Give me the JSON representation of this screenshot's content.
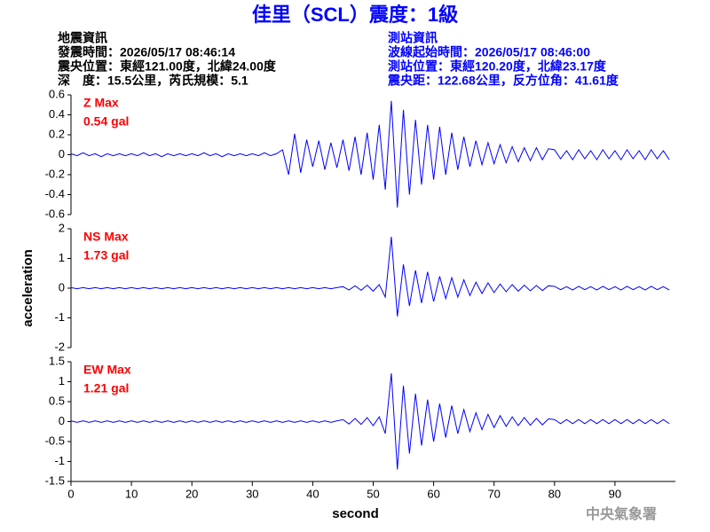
{
  "title": "佳里（SCL）震度：1級",
  "info_left": [
    "地震資訊",
    "發震時間：2026/05/17 08:46:14",
    "震央位置：東經121.00度，北緯24.00度",
    "深　度：15.5公里，芮氏規模：5.1"
  ],
  "info_right": [
    "測站資訊",
    "波線起始時間：2026/05/17 08:46:00",
    "測站位置：東經120.20度，北緯23.17度",
    "震央距：122.68公里，反方位角：41.61度"
  ],
  "footer": "中央氣象署",
  "chart_data": [
    {
      "type": "line",
      "name": "Z Max",
      "max_label": "0.54 gal",
      "xlim": [
        0,
        100
      ],
      "ylim": [
        -0.6,
        0.6
      ],
      "yticks": [
        0.6,
        0.4,
        0.2,
        0,
        -0.2,
        -0.4,
        -0.6
      ],
      "x": [
        0,
        1,
        2,
        3,
        4,
        5,
        6,
        7,
        8,
        9,
        10,
        11,
        12,
        13,
        14,
        15,
        16,
        17,
        18,
        19,
        20,
        21,
        22,
        23,
        24,
        25,
        26,
        27,
        28,
        29,
        30,
        31,
        32,
        33,
        34,
        35,
        36,
        37,
        38,
        39,
        40,
        41,
        42,
        43,
        44,
        45,
        46,
        47,
        48,
        49,
        50,
        51,
        52,
        53,
        54,
        55,
        56,
        57,
        58,
        59,
        60,
        61,
        62,
        63,
        64,
        65,
        66,
        67,
        68,
        69,
        70,
        71,
        72,
        73,
        74,
        75,
        76,
        77,
        78,
        79,
        80,
        81,
        82,
        83,
        84,
        85,
        86,
        87,
        88,
        89,
        90,
        91,
        92,
        93,
        94,
        95,
        96,
        97,
        98,
        99
      ],
      "series": [
        {
          "color": "#0000ff",
          "values": [
            0.01,
            -0.01,
            0.02,
            -0.01,
            0.01,
            -0.02,
            0.01,
            -0.01,
            0.01,
            -0.01,
            0.01,
            -0.01,
            0.02,
            -0.01,
            0.01,
            -0.02,
            0.01,
            -0.01,
            0.01,
            -0.01,
            0.01,
            -0.01,
            0.02,
            -0.01,
            0.01,
            -0.02,
            0.01,
            -0.01,
            0.01,
            -0.01,
            0.01,
            -0.01,
            0.02,
            -0.01,
            0.01,
            0.05,
            -0.2,
            0.21,
            -0.18,
            0.15,
            -0.12,
            0.14,
            -0.15,
            0.12,
            -0.13,
            0.15,
            -0.16,
            0.18,
            -0.2,
            0.22,
            -0.25,
            0.3,
            -0.35,
            0.54,
            -0.53,
            0.45,
            -0.4,
            0.35,
            -0.3,
            0.3,
            -0.25,
            0.28,
            -0.2,
            0.22,
            -0.15,
            0.18,
            -0.12,
            0.14,
            -0.1,
            0.12,
            -0.09,
            0.1,
            -0.08,
            0.08,
            -0.07,
            0.07,
            -0.06,
            0.07,
            -0.05,
            0.06,
            0.05,
            -0.04,
            0.04,
            -0.05,
            0.05,
            -0.04,
            0.04,
            -0.05,
            0.05,
            -0.04,
            0.04,
            -0.05,
            0.05,
            -0.04,
            0.04,
            -0.05,
            0.05,
            -0.04,
            0.04,
            -0.05
          ]
        }
      ]
    },
    {
      "type": "line",
      "name": "NS Max",
      "max_label": "1.73 gal",
      "y_label": "acceleration",
      "xlim": [
        0,
        100
      ],
      "ylim": [
        -2,
        2
      ],
      "yticks": [
        2,
        1,
        0,
        -1,
        -2
      ],
      "x": [
        0,
        1,
        2,
        3,
        4,
        5,
        6,
        7,
        8,
        9,
        10,
        11,
        12,
        13,
        14,
        15,
        16,
        17,
        18,
        19,
        20,
        21,
        22,
        23,
        24,
        25,
        26,
        27,
        28,
        29,
        30,
        31,
        32,
        33,
        34,
        35,
        36,
        37,
        38,
        39,
        40,
        41,
        42,
        43,
        44,
        45,
        46,
        47,
        48,
        49,
        50,
        51,
        52,
        53,
        54,
        55,
        56,
        57,
        58,
        59,
        60,
        61,
        62,
        63,
        64,
        65,
        66,
        67,
        68,
        69,
        70,
        71,
        72,
        73,
        74,
        75,
        76,
        77,
        78,
        79,
        80,
        81,
        82,
        83,
        84,
        85,
        86,
        87,
        88,
        89,
        90,
        91,
        92,
        93,
        94,
        95,
        96,
        97,
        98,
        99
      ],
      "series": [
        {
          "color": "#0000ff",
          "values": [
            0.02,
            -0.02,
            0.02,
            -0.02,
            0.02,
            -0.02,
            0.02,
            -0.02,
            0.02,
            -0.02,
            0.02,
            -0.02,
            0.02,
            -0.02,
            0.02,
            -0.02,
            0.02,
            -0.02,
            0.02,
            -0.02,
            0.02,
            -0.02,
            0.02,
            -0.02,
            0.02,
            -0.02,
            0.02,
            -0.02,
            0.02,
            -0.02,
            0.02,
            -0.02,
            0.02,
            -0.02,
            0.02,
            -0.02,
            0.02,
            -0.02,
            0.02,
            -0.02,
            0.02,
            -0.02,
            0.02,
            -0.02,
            0.02,
            0.05,
            -0.06,
            0.08,
            -0.07,
            0.1,
            -0.1,
            0.12,
            -0.3,
            1.73,
            -0.95,
            0.8,
            -0.6,
            0.6,
            -0.5,
            0.55,
            -0.45,
            0.4,
            -0.35,
            0.35,
            -0.3,
            0.28,
            -0.25,
            0.2,
            -0.18,
            0.18,
            -0.15,
            0.14,
            -0.12,
            0.12,
            -0.1,
            0.1,
            -0.09,
            0.09,
            -0.08,
            0.08,
            0.06,
            -0.05,
            0.05,
            -0.06,
            0.06,
            -0.05,
            0.05,
            -0.06,
            0.06,
            -0.05,
            0.05,
            -0.06,
            0.06,
            -0.05,
            0.05,
            -0.06,
            0.06,
            -0.05,
            0.05,
            -0.06
          ]
        }
      ]
    },
    {
      "type": "line",
      "name": "EW Max",
      "max_label": "1.21 gal",
      "x_label": "second",
      "xlim": [
        0,
        100
      ],
      "xticks": [
        0,
        10,
        20,
        30,
        40,
        50,
        60,
        70,
        80,
        90
      ],
      "ylim": [
        -1.5,
        1.5
      ],
      "yticks": [
        1.5,
        1,
        0.5,
        0,
        -0.5,
        -1,
        -1.5
      ],
      "x": [
        0,
        1,
        2,
        3,
        4,
        5,
        6,
        7,
        8,
        9,
        10,
        11,
        12,
        13,
        14,
        15,
        16,
        17,
        18,
        19,
        20,
        21,
        22,
        23,
        24,
        25,
        26,
        27,
        28,
        29,
        30,
        31,
        32,
        33,
        34,
        35,
        36,
        37,
        38,
        39,
        40,
        41,
        42,
        43,
        44,
        45,
        46,
        47,
        48,
        49,
        50,
        51,
        52,
        53,
        54,
        55,
        56,
        57,
        58,
        59,
        60,
        61,
        62,
        63,
        64,
        65,
        66,
        67,
        68,
        69,
        70,
        71,
        72,
        73,
        74,
        75,
        76,
        77,
        78,
        79,
        80,
        81,
        82,
        83,
        84,
        85,
        86,
        87,
        88,
        89,
        90,
        91,
        92,
        93,
        94,
        95,
        96,
        97,
        98,
        99
      ],
      "series": [
        {
          "color": "#0000ff",
          "values": [
            0.02,
            -0.02,
            0.02,
            -0.02,
            0.02,
            -0.02,
            0.02,
            -0.02,
            0.02,
            -0.02,
            0.02,
            -0.02,
            0.02,
            -0.02,
            0.02,
            -0.02,
            0.02,
            -0.02,
            0.02,
            -0.02,
            0.02,
            -0.02,
            0.02,
            -0.02,
            0.02,
            -0.02,
            0.02,
            -0.02,
            0.02,
            -0.02,
            0.02,
            -0.02,
            0.02,
            -0.02,
            0.02,
            -0.02,
            0.02,
            -0.02,
            0.02,
            -0.02,
            0.02,
            -0.02,
            0.02,
            -0.02,
            0.02,
            0.05,
            -0.06,
            0.08,
            -0.07,
            0.1,
            -0.1,
            0.12,
            -0.3,
            1.21,
            -1.2,
            0.9,
            -0.8,
            0.7,
            -0.6,
            0.55,
            -0.5,
            0.45,
            -0.4,
            0.4,
            -0.3,
            0.3,
            -0.25,
            0.22,
            -0.2,
            0.18,
            -0.15,
            0.15,
            -0.12,
            0.12,
            -0.1,
            0.1,
            -0.09,
            0.08,
            -0.08,
            0.07,
            0.05,
            -0.05,
            0.05,
            -0.05,
            0.05,
            -0.05,
            0.05,
            -0.05,
            0.05,
            -0.05,
            0.05,
            -0.05,
            0.05,
            -0.05,
            0.05,
            -0.05,
            0.05,
            -0.05,
            0.05,
            -0.05
          ]
        }
      ]
    }
  ]
}
